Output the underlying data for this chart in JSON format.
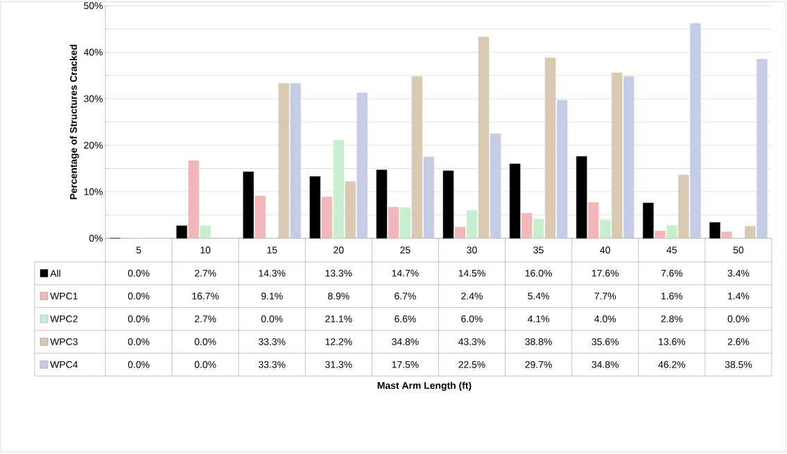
{
  "chart_data": {
    "type": "bar",
    "ylabel": "Percentage of Structures Cracked",
    "annotations": [
      "Mast Arm Length (ft)"
    ],
    "categories": [
      "5",
      "10",
      "15",
      "20",
      "25",
      "30",
      "35",
      "40",
      "45",
      "50"
    ],
    "series": [
      {
        "name": "All",
        "color": "#000000",
        "values": [
          0.0,
          2.7,
          14.3,
          13.3,
          14.7,
          14.5,
          16.0,
          17.6,
          7.6,
          3.4
        ],
        "value_labels": [
          "0.0%",
          "2.7%",
          "14.3%",
          "13.3%",
          "14.7%",
          "14.5%",
          "16.0%",
          "17.6%",
          "7.6%",
          "3.4%"
        ]
      },
      {
        "name": "WPC1",
        "color": "#f2b8b8",
        "values": [
          0.0,
          16.7,
          9.1,
          8.9,
          6.7,
          2.4,
          5.4,
          7.7,
          1.6,
          1.4
        ],
        "value_labels": [
          "0.0%",
          "16.7%",
          "9.1%",
          "8.9%",
          "6.7%",
          "2.4%",
          "5.4%",
          "7.7%",
          "1.6%",
          "1.4%"
        ]
      },
      {
        "name": "WPC2",
        "color": "#c6efce",
        "values": [
          0.0,
          2.7,
          0.0,
          21.1,
          6.6,
          6.0,
          4.1,
          4.0,
          2.8,
          0.0
        ],
        "value_labels": [
          "0.0%",
          "2.7%",
          "0.0%",
          "21.1%",
          "6.6%",
          "6.0%",
          "4.1%",
          "4.0%",
          "2.8%",
          "0.0%"
        ]
      },
      {
        "name": "WPC3",
        "color": "#d9c9b0",
        "values": [
          0.0,
          0.0,
          33.3,
          12.2,
          34.8,
          43.3,
          38.8,
          35.6,
          13.6,
          2.6
        ],
        "value_labels": [
          "0.0%",
          "0.0%",
          "33.3%",
          "12.2%",
          "34.8%",
          "43.3%",
          "38.8%",
          "35.6%",
          "13.6%",
          "2.6%"
        ]
      },
      {
        "name": "WPC4",
        "color": "#c5cde6",
        "values": [
          0.0,
          0.0,
          33.3,
          31.3,
          17.5,
          22.5,
          29.7,
          34.8,
          46.2,
          38.5
        ],
        "value_labels": [
          "0.0%",
          "0.0%",
          "33.3%",
          "31.3%",
          "17.5%",
          "22.5%",
          "29.7%",
          "34.8%",
          "46.2%",
          "38.5%"
        ]
      }
    ],
    "ylim": [
      0,
      50
    ],
    "yticks": [
      {
        "value": 0,
        "label": "0%"
      },
      {
        "value": 5,
        "label": null
      },
      {
        "value": 10,
        "label": "10%"
      },
      {
        "value": 15,
        "label": null
      },
      {
        "value": 20,
        "label": "20%"
      },
      {
        "value": 25,
        "label": null
      },
      {
        "value": 30,
        "label": "30%"
      },
      {
        "value": 35,
        "label": null
      },
      {
        "value": 40,
        "label": "40%"
      },
      {
        "value": 45,
        "label": null
      },
      {
        "value": 50,
        "label": "50%"
      }
    ],
    "grid": "y",
    "legend": "bottom"
  }
}
